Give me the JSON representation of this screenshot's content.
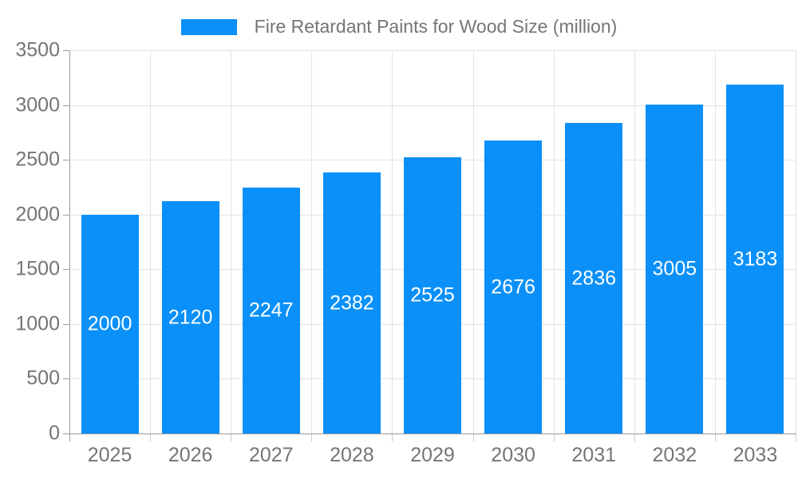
{
  "chart_data": {
    "type": "bar",
    "title": "Fire Retardant Paints for Wood Size (million)",
    "series_name": "Fire Retardant Paints for Wood Size (million)",
    "categories": [
      "2025",
      "2026",
      "2027",
      "2028",
      "2029",
      "2030",
      "2031",
      "2032",
      "2033"
    ],
    "values": [
      2000,
      2120,
      2247,
      2382,
      2525,
      2676,
      2836,
      3005,
      3183
    ],
    "xlabel": "",
    "ylabel": "",
    "ylim": [
      0,
      3500
    ],
    "ytick_step": 500,
    "yticks": [
      0,
      500,
      1000,
      1500,
      2000,
      2500,
      3000,
      3500
    ],
    "grid": true,
    "legend_position": "top-center",
    "bar_label_position": "inside-center",
    "colors": {
      "bar": "#0a90f8",
      "bar_label": "#ffffff",
      "axis_line": "#999999",
      "grid_line": "#e3e3e3",
      "minor_tick": "#cccccc",
      "tick_text": "#757575",
      "legend_text": "#757575",
      "background": "#ffffff"
    }
  }
}
